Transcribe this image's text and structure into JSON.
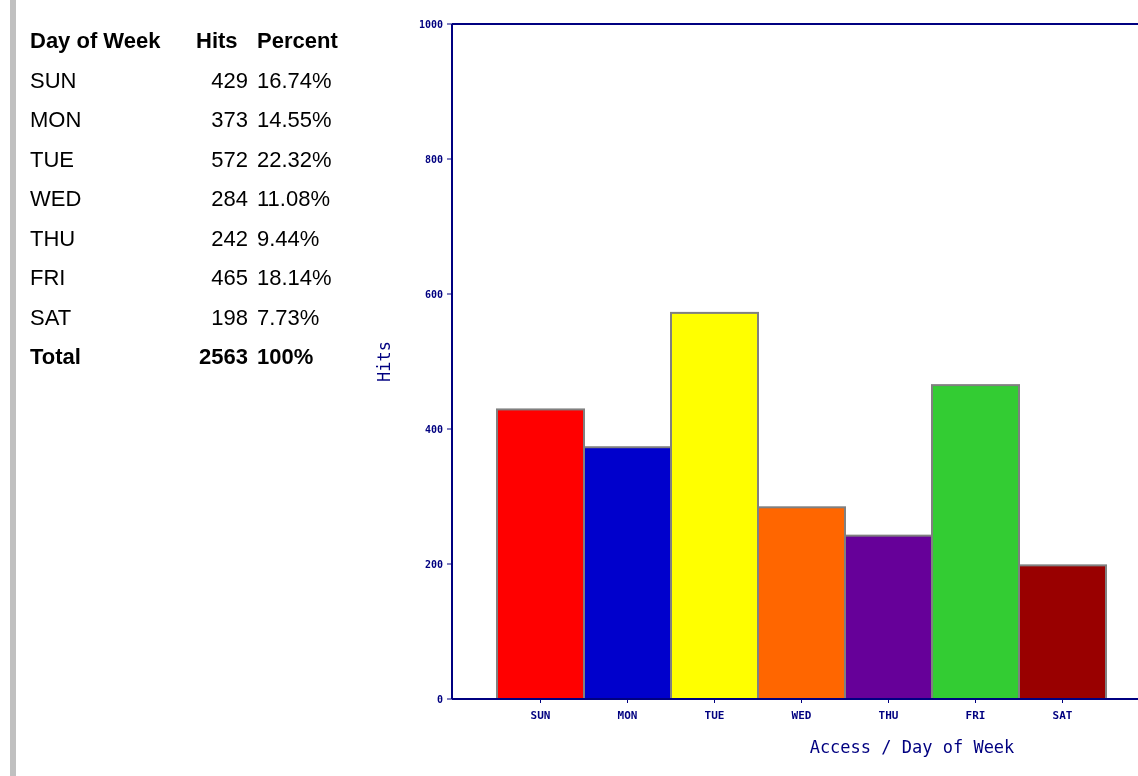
{
  "chart_data": [
    {
      "type": "other",
      "annotations": [
        "Day of Week",
        "Hits",
        "Percent",
        "SUN",
        "429",
        "16.74%",
        "MON",
        "373",
        "14.55%",
        "TUE",
        "572",
        "22.32%",
        "WED",
        "284",
        "11.08%",
        "THU",
        "242",
        "9.44%",
        "FRI",
        "465",
        "18.14%",
        "SAT",
        "198",
        "7.73%",
        "Total",
        "2563",
        "100%"
      ]
    },
    {
      "type": "bar",
      "xlabel": "Access / Day of Week",
      "ylabel": "Hits",
      "categories": [
        "SUN",
        "MON",
        "TUE",
        "WED",
        "THU",
        "FRI",
        "SAT"
      ],
      "values": [
        429,
        373,
        572,
        284,
        242,
        465,
        198
      ],
      "colors": [
        "#ff0000",
        "#0000cc",
        "#ffff00",
        "#ff6600",
        "#660099",
        "#33cc33",
        "#990000"
      ],
      "ylim": [
        0,
        1000
      ],
      "yticks": [
        0,
        200,
        400,
        600,
        800,
        1000
      ]
    }
  ]
}
